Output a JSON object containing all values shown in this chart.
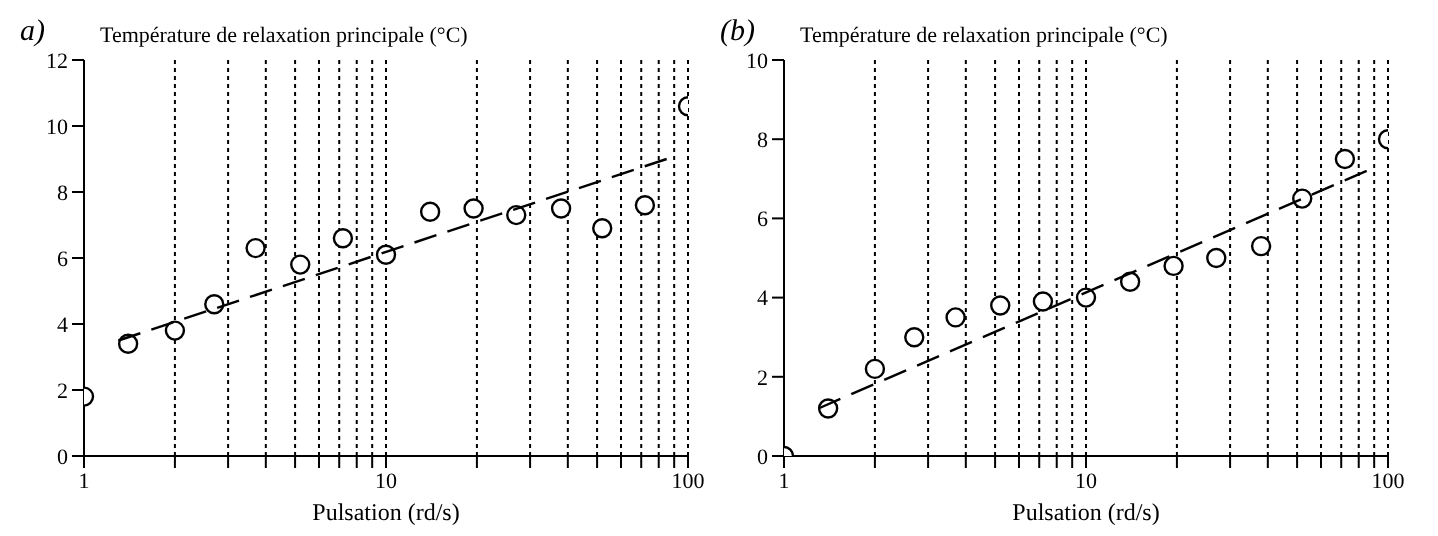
{
  "chart_data": [
    {
      "type": "scatter",
      "title": "a)",
      "ylabel": "Température de relaxation principale  (°C)",
      "xlabel": "Pulsation (rd/s)",
      "log": "x",
      "xlim": [
        1,
        100
      ],
      "xticks": [
        1,
        {
          "value": 2,
          "label": null
        },
        {
          "value": 3,
          "label": null
        },
        {
          "value": 4,
          "label": null
        },
        {
          "value": 5,
          "label": null
        },
        {
          "value": 6,
          "label": null
        },
        {
          "value": 7,
          "label": null
        },
        {
          "value": 8,
          "label": null
        },
        {
          "value": 9,
          "label": null
        },
        10,
        {
          "value": 20,
          "label": null
        },
        {
          "value": 30,
          "label": null
        },
        {
          "value": 40,
          "label": null
        },
        {
          "value": 50,
          "label": null
        },
        {
          "value": 60,
          "label": null
        },
        {
          "value": 70,
          "label": null
        },
        {
          "value": 80,
          "label": null
        },
        {
          "value": 90,
          "label": null
        },
        100
      ],
      "ylim": [
        0,
        12
      ],
      "yticks": [
        0,
        2,
        4,
        6,
        8,
        10,
        12
      ],
      "grid": "x",
      "marker": "circle",
      "series": [
        {
          "color": "#000000",
          "x": [
            1,
            1.4,
            2,
            2.7,
            3.7,
            5.2,
            7.2,
            10,
            14,
            19.5,
            27,
            38,
            52,
            72,
            100
          ],
          "values": [
            1.8,
            3.4,
            3.8,
            4.6,
            6.3,
            5.8,
            6.6,
            6.1,
            7.4,
            7.5,
            7.3,
            7.5,
            6.9,
            7.6,
            10.6
          ]
        },
        {
          "type": "line",
          "color": "#000000",
          "line_style": "dashed",
          "marker": "none",
          "x": [
            1.3,
            85
          ],
          "values": [
            3.5,
            9.0
          ]
        }
      ]
    },
    {
      "type": "scatter",
      "title": "(b)",
      "ylabel": "Température de relaxation principale  (°C)",
      "xlabel": "Pulsation (rd/s)",
      "log": "x",
      "xlim": [
        1,
        100
      ],
      "xticks": [
        1,
        {
          "value": 2,
          "label": null
        },
        {
          "value": 3,
          "label": null
        },
        {
          "value": 4,
          "label": null
        },
        {
          "value": 5,
          "label": null
        },
        {
          "value": 6,
          "label": null
        },
        {
          "value": 7,
          "label": null
        },
        {
          "value": 8,
          "label": null
        },
        {
          "value": 9,
          "label": null
        },
        10,
        {
          "value": 20,
          "label": null
        },
        {
          "value": 30,
          "label": null
        },
        {
          "value": 40,
          "label": null
        },
        {
          "value": 50,
          "label": null
        },
        {
          "value": 60,
          "label": null
        },
        {
          "value": 70,
          "label": null
        },
        {
          "value": 80,
          "label": null
        },
        {
          "value": 90,
          "label": null
        },
        100
      ],
      "ylim": [
        0,
        10
      ],
      "yticks": [
        0,
        2,
        4,
        6,
        8,
        10
      ],
      "grid": "x",
      "marker": "circle",
      "series": [
        {
          "color": "#000000",
          "x": [
            1,
            1.4,
            2,
            2.7,
            3.7,
            5.2,
            7.2,
            10,
            14,
            19.5,
            27,
            38,
            52,
            72,
            100
          ],
          "values": [
            0,
            1.2,
            2.2,
            3.0,
            3.5,
            3.8,
            3.9,
            4.0,
            4.4,
            4.8,
            5.0,
            5.3,
            6.5,
            7.5,
            8.0
          ]
        },
        {
          "type": "line",
          "color": "#000000",
          "line_style": "dashed",
          "marker": "none",
          "x": [
            1.3,
            85
          ],
          "values": [
            1.2,
            7.2
          ]
        }
      ]
    }
  ]
}
